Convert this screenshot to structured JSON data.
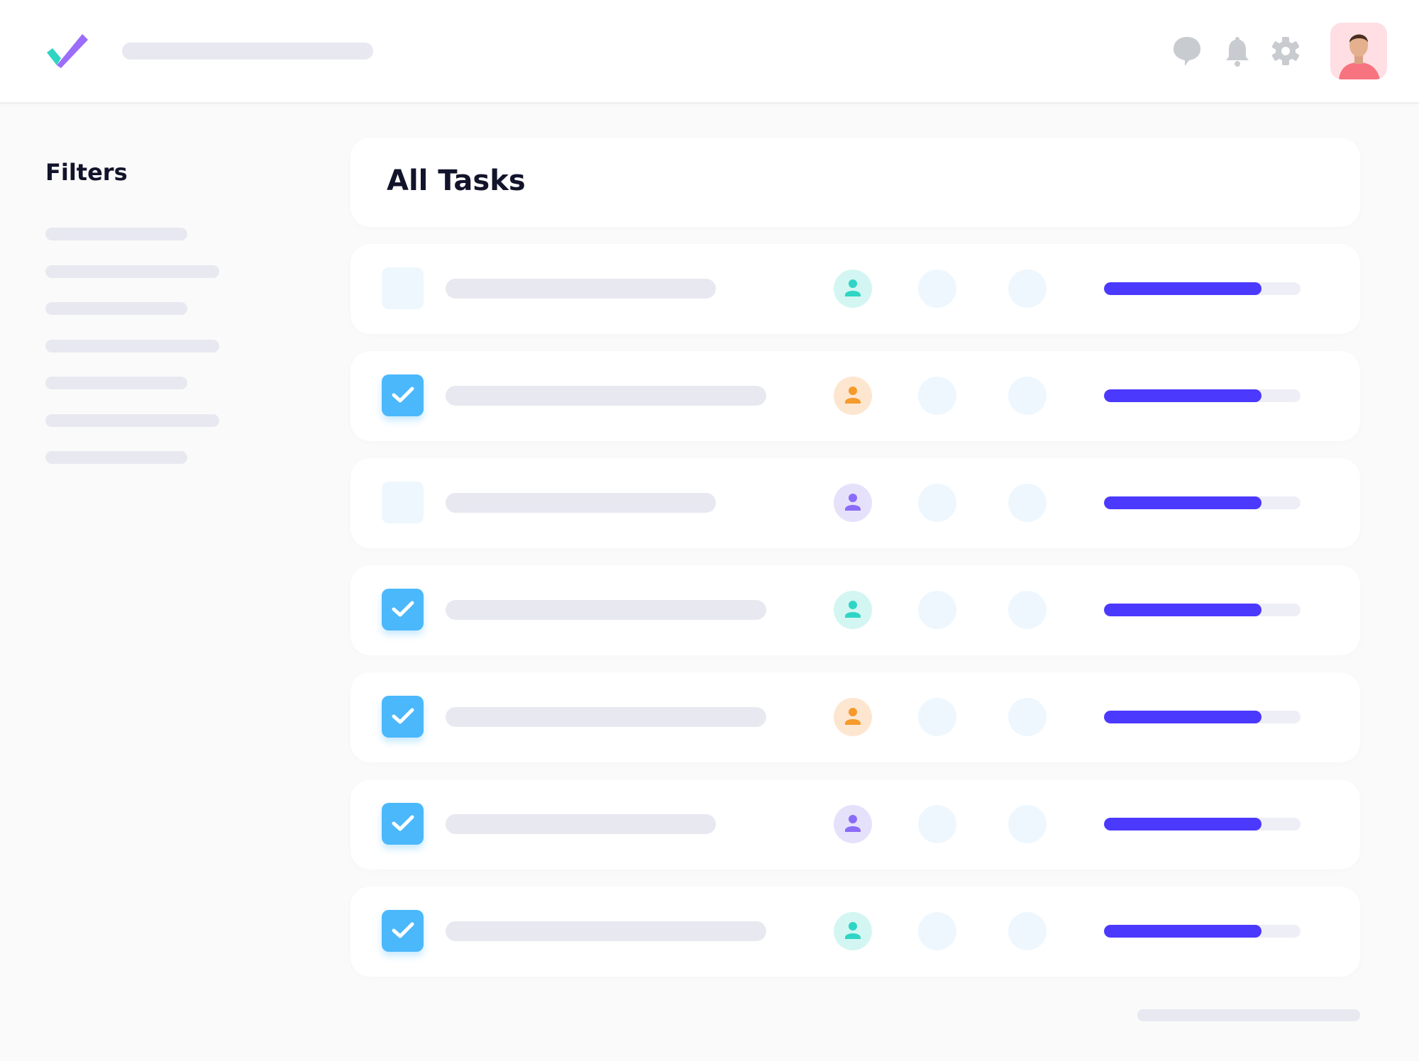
{
  "header": {
    "logo": "checkmark-logo",
    "icons": [
      "chat-icon",
      "bell-icon",
      "gear-icon"
    ],
    "icon_color": "#c8cbd0"
  },
  "sidebar": {
    "title": "Filters",
    "items": 7
  },
  "main": {
    "title": "All Tasks",
    "colors": {
      "checkbox": "#4bb8fb",
      "progress": "#4b39fe",
      "teal": "#2fd5c4",
      "orange": "#f59a2b",
      "purple": "#8b6cf6"
    },
    "rows": [
      {
        "checked": false,
        "assignee_color": "teal",
        "progress": 0.8
      },
      {
        "checked": true,
        "assignee_color": "orange",
        "progress": 0.8
      },
      {
        "checked": false,
        "assignee_color": "purple",
        "progress": 0.8
      },
      {
        "checked": true,
        "assignee_color": "teal",
        "progress": 0.8
      },
      {
        "checked": true,
        "assignee_color": "orange",
        "progress": 0.8
      },
      {
        "checked": true,
        "assignee_color": "purple",
        "progress": 0.8
      },
      {
        "checked": true,
        "assignee_color": "teal",
        "progress": 0.8
      }
    ]
  }
}
